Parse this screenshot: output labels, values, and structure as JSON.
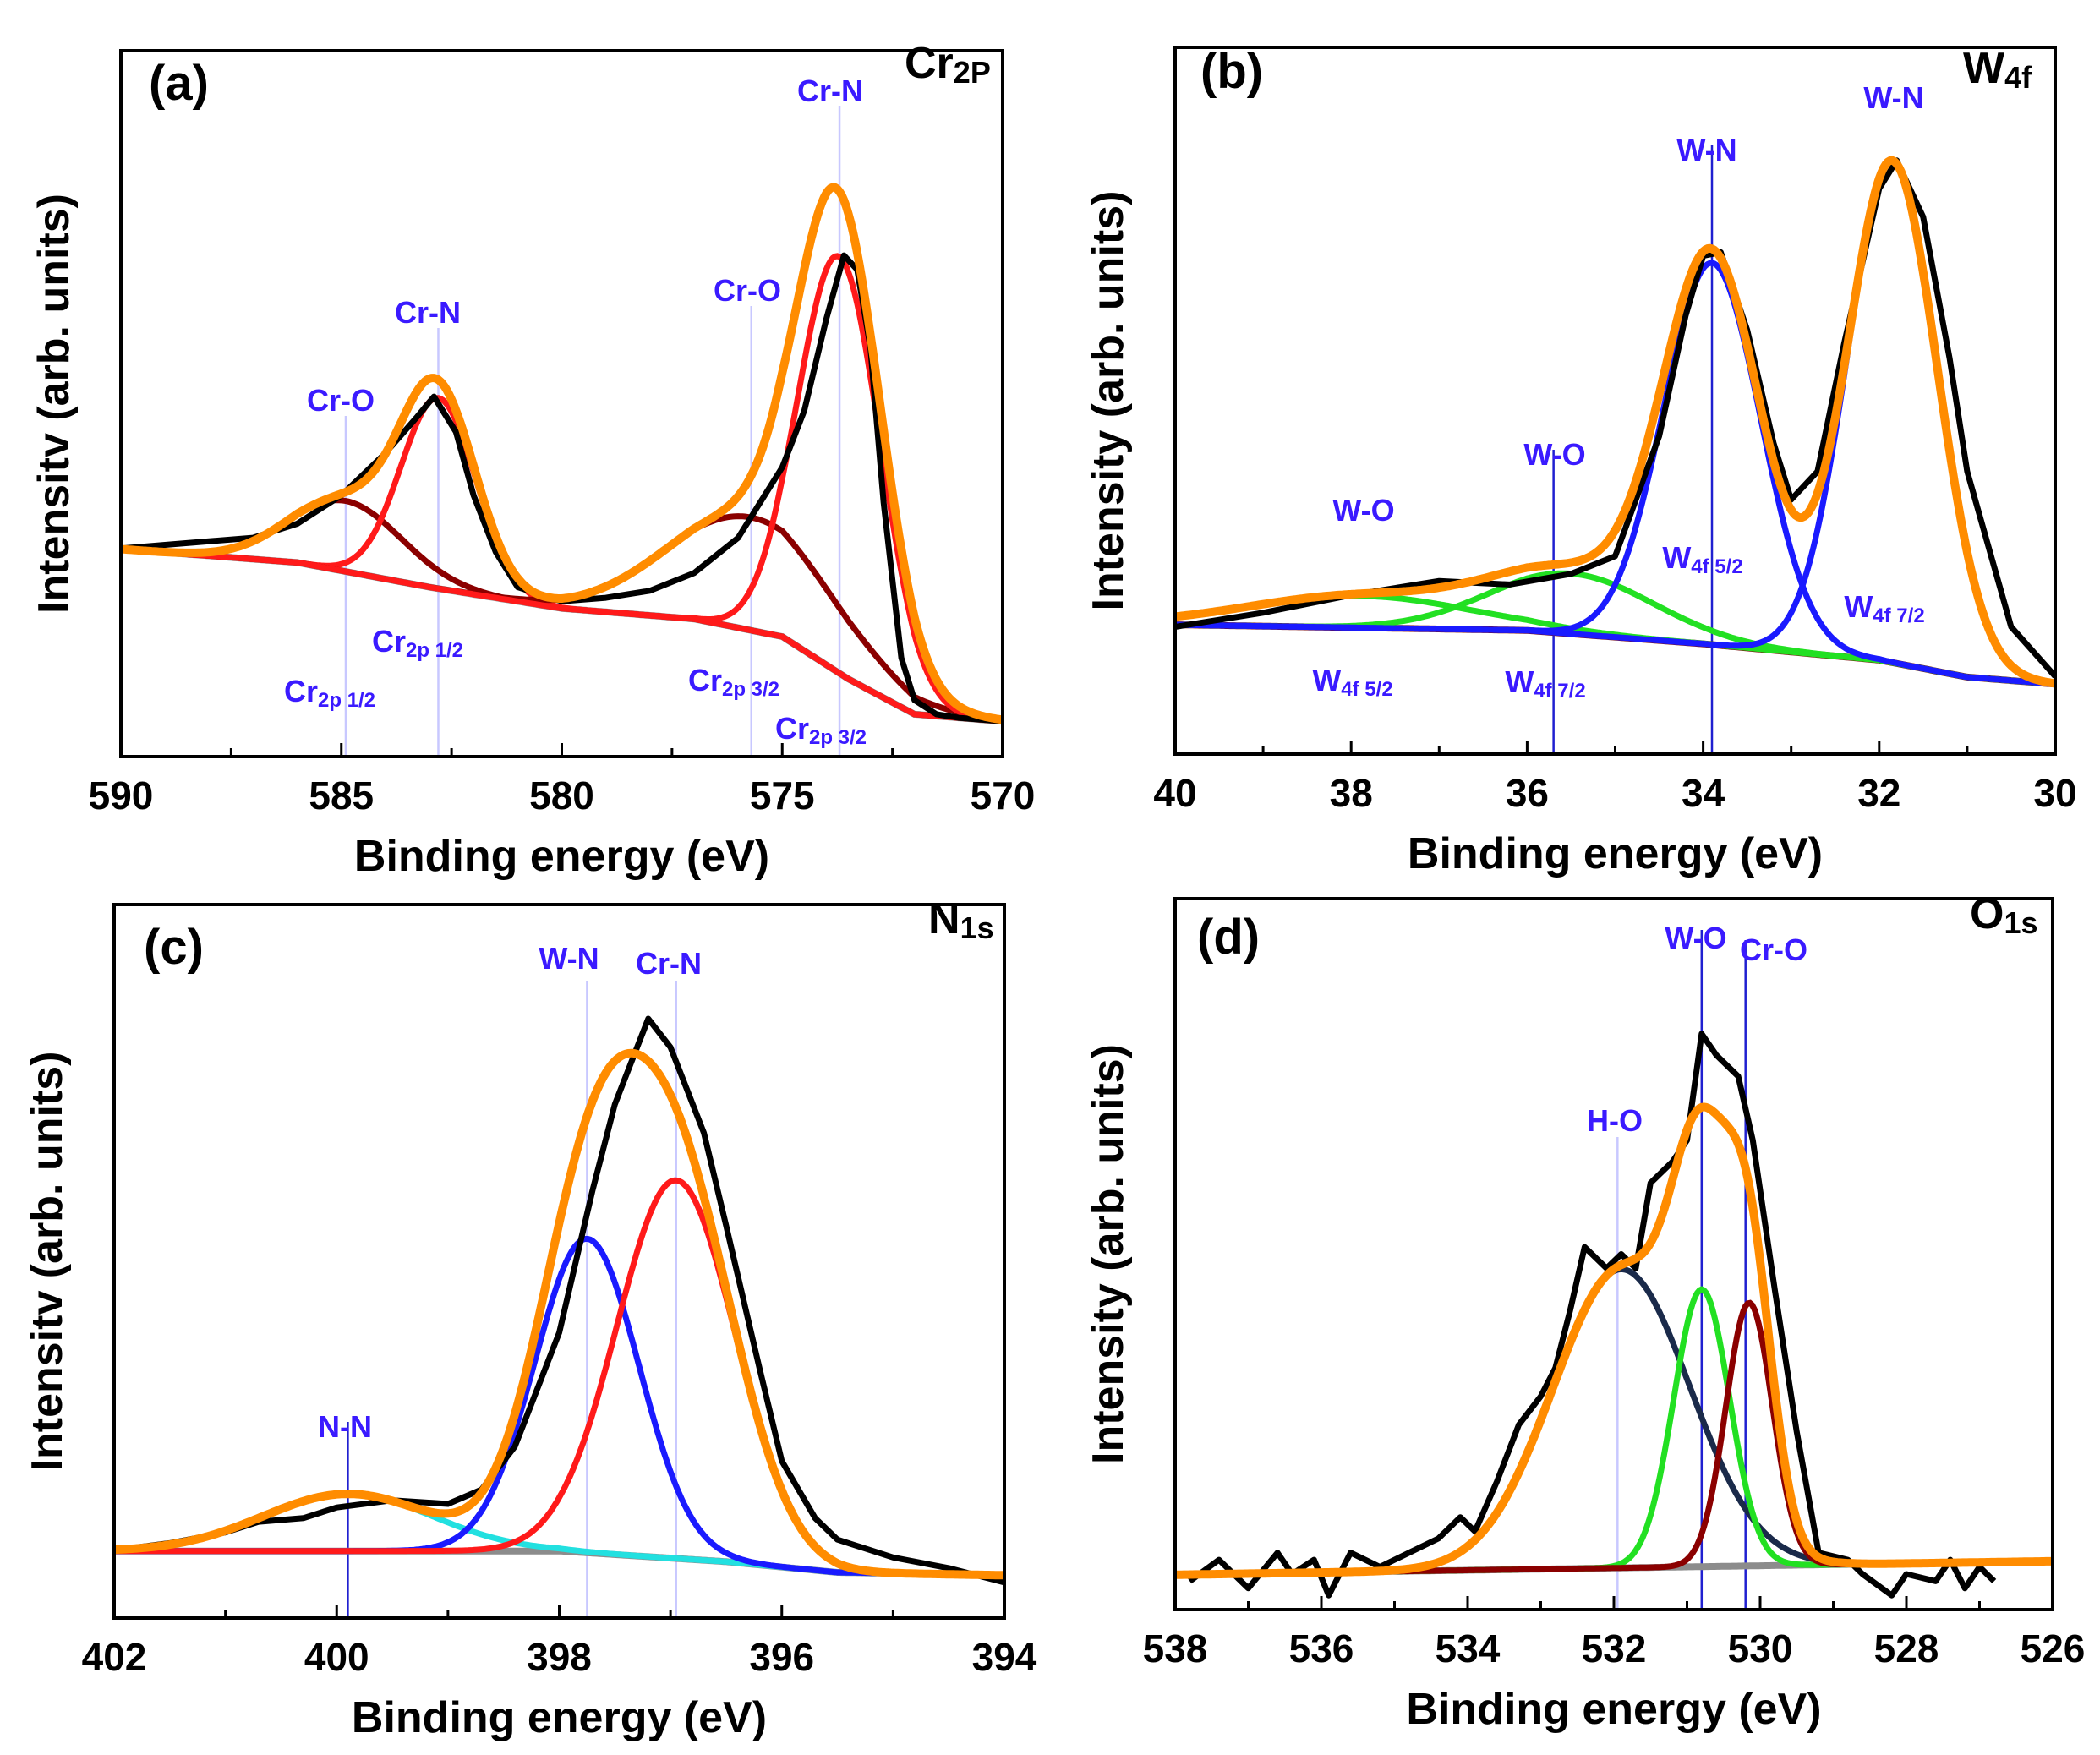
{
  "colors": {
    "experimental": "#000000",
    "fit": "#ff8c00",
    "annotation": "#3a1aff"
  },
  "chart_data": [
    {
      "type": "line",
      "panel": "(a)",
      "element": {
        "main": "Cr",
        "sub": "2P"
      },
      "xlabel": "Binding energy (eV)",
      "ylabel": "Intensitv (arb. units)",
      "xlim": [
        590,
        570
      ],
      "ylim": [
        0,
        100
      ],
      "xticks": [
        590,
        585,
        580,
        575,
        570
      ],
      "minor_step": 2.5,
      "background": {
        "color": "#8c8c8c",
        "points": [
          [
            590,
            29.4
          ],
          [
            586,
            27.5
          ],
          [
            583,
            24
          ],
          [
            580,
            21
          ],
          [
            577,
            19.5
          ],
          [
            575,
            17
          ],
          [
            573.5,
            11
          ],
          [
            572,
            6
          ],
          [
            570,
            5
          ]
        ]
      },
      "components": [
        {
          "center": 584.9,
          "height": 10,
          "fwhm": 3.0,
          "color": "#8b0000"
        },
        {
          "center": 582.8,
          "height": 27,
          "fwhm": 2.0,
          "color": "#ff1a1a"
        },
        {
          "center": 575.7,
          "height": 16,
          "fwhm": 4.5,
          "color": "#8b0000"
        },
        {
          "center": 573.7,
          "height": 59,
          "fwhm": 2.2,
          "color": "#ff1a1a"
        }
      ],
      "experimental": [
        [
          590,
          29.5
        ],
        [
          589,
          30
        ],
        [
          588,
          30.5
        ],
        [
          587,
          31
        ],
        [
          586,
          33
        ],
        [
          585,
          37
        ],
        [
          584,
          43
        ],
        [
          583.3,
          48
        ],
        [
          582.9,
          51
        ],
        [
          582.4,
          46
        ],
        [
          582,
          37
        ],
        [
          581.5,
          29
        ],
        [
          581,
          24
        ],
        [
          580,
          22
        ],
        [
          579,
          22.5
        ],
        [
          578,
          23.5
        ],
        [
          577,
          26
        ],
        [
          576,
          31
        ],
        [
          575.5,
          36
        ],
        [
          575,
          41
        ],
        [
          574.5,
          49
        ],
        [
          574,
          62
        ],
        [
          573.6,
          71
        ],
        [
          573.3,
          69
        ],
        [
          573,
          58
        ],
        [
          572.7,
          36
        ],
        [
          572.3,
          14
        ],
        [
          572,
          8
        ],
        [
          571.5,
          6
        ],
        [
          571,
          5.5
        ],
        [
          570,
          5
        ]
      ],
      "annotations": [
        {
          "main": "Cr-N",
          "sub": "",
          "x": 573.7,
          "line_color": "#c8c8ff"
        },
        {
          "main": "Cr-O",
          "sub": "",
          "x": 575.7,
          "line_color": "#c8c8ff"
        },
        {
          "main": "Cr-N",
          "sub": "",
          "x": 582.8,
          "line_color": "#c8c8ff"
        },
        {
          "main": "Cr-O",
          "sub": "",
          "x": 584.9,
          "line_color": "#c8c8ff"
        },
        {
          "main": "Cr",
          "sub": "2p 1/2"
        },
        {
          "main": "Cr",
          "sub": "2p 1/2"
        },
        {
          "main": "Cr",
          "sub": "2p 3/2"
        },
        {
          "main": "Cr",
          "sub": "2p 3/2"
        }
      ]
    },
    {
      "type": "line",
      "panel": "(b)",
      "element": {
        "main": "W",
        "sub": "4f"
      },
      "xlabel": "Binding energy (eV)",
      "ylabel": "Intensity (arb. units)",
      "xlim": [
        40,
        30
      ],
      "ylim": [
        0,
        100
      ],
      "xticks": [
        40,
        38,
        36,
        34,
        32,
        30
      ],
      "minor_step": 1,
      "background": {
        "color": "#7a0a0a",
        "points": [
          [
            40,
            18.3
          ],
          [
            38,
            17.9
          ],
          [
            36,
            17.5
          ],
          [
            34,
            15.6
          ],
          [
            32,
            13.3
          ],
          [
            31,
            10.9
          ],
          [
            30,
            9.9
          ]
        ]
      },
      "components": [
        {
          "center": 37.9,
          "height": 4.5,
          "fwhm": 3.0,
          "color": "#22e022"
        },
        {
          "center": 35.5,
          "height": 8.5,
          "fwhm": 2.2,
          "color": "#22e022"
        },
        {
          "center": 33.9,
          "height": 54,
          "fwhm": 1.3,
          "color": "#1a1aff"
        },
        {
          "center": 31.85,
          "height": 71,
          "fwhm": 1.2,
          "color": "#1a1aff"
        }
      ],
      "experimental": [
        [
          40,
          18
        ],
        [
          39,
          20
        ],
        [
          38,
          22.5
        ],
        [
          37,
          24.5
        ],
        [
          36.2,
          24
        ],
        [
          35.5,
          25.5
        ],
        [
          35,
          28
        ],
        [
          34.5,
          45
        ],
        [
          34.2,
          62
        ],
        [
          34,
          70.5
        ],
        [
          33.8,
          71
        ],
        [
          33.5,
          60
        ],
        [
          33.2,
          44
        ],
        [
          33,
          36
        ],
        [
          32.7,
          40
        ],
        [
          32.4,
          58
        ],
        [
          32,
          80
        ],
        [
          31.8,
          84
        ],
        [
          31.5,
          76
        ],
        [
          31.2,
          56
        ],
        [
          31,
          40
        ],
        [
          30.5,
          18
        ],
        [
          30,
          11
        ]
      ],
      "annotations": [
        {
          "main": "W-N",
          "sub": "",
          "x": 31.85,
          "line_color": "none"
        },
        {
          "main": "W-N",
          "sub": "",
          "x": 33.9,
          "line_color": "#2020d0"
        },
        {
          "main": "W-O",
          "sub": "",
          "x": 35.7,
          "line_color": "#2020d0"
        },
        {
          "main": "W-O",
          "sub": "",
          "x": 37.9,
          "line_color": "none"
        },
        {
          "main": "W",
          "sub": "4f 5/2"
        },
        {
          "main": "W",
          "sub": "4f 7/2"
        },
        {
          "main": "W",
          "sub": "4f 5/2"
        },
        {
          "main": "W",
          "sub": "4f 7/2"
        }
      ]
    },
    {
      "type": "line",
      "panel": "(c)",
      "element": {
        "main": "N",
        "sub": "1s"
      },
      "xlabel": "Binding energy (eV)",
      "ylabel": "Intensitv (arb. units)",
      "xlim": [
        402,
        394
      ],
      "ylim": [
        0,
        100
      ],
      "xticks": [
        402,
        400,
        398,
        396,
        394
      ],
      "minor_step": 1,
      "background": {
        "color": "#8c8c8c",
        "points": [
          [
            402,
            9.4
          ],
          [
            398,
            9.4
          ],
          [
            396.5,
            7.9
          ],
          [
            395.5,
            6.4
          ],
          [
            394,
            6
          ]
        ]
      },
      "components": [
        {
          "center": 399.9,
          "height": 8,
          "fwhm": 1.8,
          "color": "#22e0e0"
        },
        {
          "center": 397.75,
          "height": 44,
          "fwhm": 1.1,
          "color": "#1a1aff"
        },
        {
          "center": 396.95,
          "height": 53,
          "fwhm": 1.25,
          "color": "#ff1a1a"
        }
      ],
      "experimental": [
        [
          402,
          9.5
        ],
        [
          401.5,
          10.5
        ],
        [
          401,
          12
        ],
        [
          400.7,
          13.5
        ],
        [
          400.3,
          14
        ],
        [
          400,
          15.5
        ],
        [
          399.5,
          16.5
        ],
        [
          399,
          16
        ],
        [
          398.7,
          18
        ],
        [
          398.4,
          24
        ],
        [
          398,
          40
        ],
        [
          397.7,
          60
        ],
        [
          397.5,
          72
        ],
        [
          397.2,
          84
        ],
        [
          397,
          80
        ],
        [
          396.7,
          68
        ],
        [
          396.5,
          55
        ],
        [
          396.2,
          35
        ],
        [
          396,
          22
        ],
        [
          395.7,
          14
        ],
        [
          395.5,
          11
        ],
        [
          395,
          8.5
        ],
        [
          394.5,
          7
        ],
        [
          394,
          5
        ]
      ],
      "annotations": [
        {
          "main": "W-N",
          "sub": "",
          "x": 397.75,
          "line_color": "#c8c8ff"
        },
        {
          "main": "Cr-N",
          "sub": "",
          "x": 396.95,
          "line_color": "#c8c8ff"
        },
        {
          "main": "N-N",
          "sub": "",
          "x": 399.9,
          "line_color": "#2020d0"
        }
      ]
    },
    {
      "type": "line",
      "panel": "(d)",
      "element": {
        "main": "O",
        "sub": "1s"
      },
      "xlabel": "Binding energy (eV)",
      "ylabel": "Intensity (arb. units)",
      "xlim": [
        538,
        526
      ],
      "ylim": [
        0,
        100
      ],
      "xticks": [
        538,
        536,
        534,
        532,
        530,
        528,
        526
      ],
      "minor_step": 1,
      "background": {
        "color": "#8c8c8c",
        "points": [
          [
            538,
            4.9
          ],
          [
            526,
            6.8
          ]
        ]
      },
      "components": [
        {
          "center": 531.9,
          "height": 42,
          "fwhm": 2.2,
          "color": "#1a2a4a"
        },
        {
          "center": 530.8,
          "height": 39,
          "fwhm": 0.9,
          "color": "#22e022"
        },
        {
          "center": 530.15,
          "height": 37,
          "fwhm": 0.75,
          "color": "#8b0000"
        }
      ],
      "experimental": [
        [
          537.8,
          4
        ],
        [
          537.4,
          7
        ],
        [
          537,
          3
        ],
        [
          536.6,
          8
        ],
        [
          536.4,
          5
        ],
        [
          536.1,
          7
        ],
        [
          535.9,
          2
        ],
        [
          535.6,
          8
        ],
        [
          535.2,
          6
        ],
        [
          534.8,
          8
        ],
        [
          534.4,
          10
        ],
        [
          534.1,
          13
        ],
        [
          533.9,
          11
        ],
        [
          533.6,
          18
        ],
        [
          533.3,
          26
        ],
        [
          533,
          30
        ],
        [
          532.8,
          34
        ],
        [
          532.6,
          42
        ],
        [
          532.4,
          51
        ],
        [
          532.1,
          48
        ],
        [
          531.9,
          50
        ],
        [
          531.7,
          48
        ],
        [
          531.5,
          60
        ],
        [
          531.2,
          63
        ],
        [
          531,
          66
        ],
        [
          530.8,
          81
        ],
        [
          530.6,
          78
        ],
        [
          530.3,
          75
        ],
        [
          530.1,
          66
        ],
        [
          529.8,
          45
        ],
        [
          529.5,
          25
        ],
        [
          529.2,
          8
        ],
        [
          528.8,
          7
        ],
        [
          528.6,
          5
        ],
        [
          528.2,
          2
        ],
        [
          528,
          5
        ],
        [
          527.6,
          4
        ],
        [
          527.4,
          7
        ],
        [
          527.2,
          3
        ],
        [
          527,
          6
        ],
        [
          526.8,
          4
        ]
      ],
      "annotations": [
        {
          "main": "H-O",
          "sub": "",
          "x": 531.95,
          "line_color": "#c8c8ff"
        },
        {
          "main": "W-O",
          "sub": "",
          "x": 530.8,
          "line_color": "#2020d0"
        },
        {
          "main": "Cr-O",
          "sub": "",
          "x": 530.2,
          "line_color": "#2020d0"
        }
      ]
    }
  ]
}
